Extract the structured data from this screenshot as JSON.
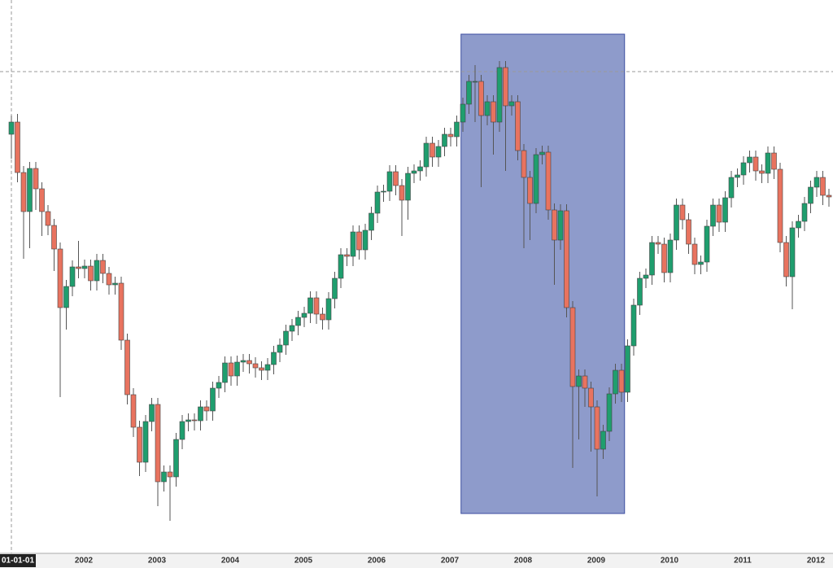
{
  "chart_data": {
    "type": "candlestick",
    "categories": [
      "01-01-01",
      null,
      null,
      null,
      null,
      null,
      null,
      null,
      null,
      null,
      null,
      null,
      "2002",
      null,
      null,
      null,
      null,
      null,
      null,
      null,
      null,
      null,
      null,
      null,
      "2003",
      null,
      null,
      null,
      null,
      null,
      null,
      null,
      null,
      null,
      null,
      null,
      "2004",
      null,
      null,
      null,
      null,
      null,
      null,
      null,
      null,
      null,
      null,
      null,
      "2005",
      null,
      null,
      null,
      null,
      null,
      null,
      null,
      null,
      null,
      null,
      null,
      "2006",
      null,
      null,
      null,
      null,
      null,
      null,
      null,
      null,
      null,
      null,
      null,
      "2007",
      null,
      null,
      null,
      null,
      null,
      null,
      null,
      null,
      null,
      null,
      null,
      "2008",
      null,
      null,
      null,
      null,
      null,
      null,
      null,
      null,
      null,
      null,
      null,
      "2009",
      null,
      null,
      null,
      null,
      null,
      null,
      null,
      null,
      null,
      null,
      null,
      "2010",
      null,
      null,
      null,
      null,
      null,
      null,
      null,
      null,
      null,
      null,
      null,
      "2011",
      null,
      null,
      null,
      null,
      null,
      null,
      null,
      null,
      null,
      null,
      null,
      "2012",
      null,
      null
    ],
    "open": [
      515,
      530,
      468,
      420,
      473,
      448,
      420,
      403,
      374,
      302,
      328,
      352,
      350,
      353,
      335,
      360,
      344,
      330,
      332,
      262,
      195,
      155,
      112,
      162,
      183,
      88,
      100,
      94,
      140,
      162,
      164,
      163,
      180,
      175,
      203,
      210,
      234,
      218,
      235,
      237,
      233,
      228,
      225,
      232,
      247,
      256,
      273,
      280,
      290,
      295,
      314,
      294,
      287,
      313,
      338,
      367,
      365,
      395,
      373,
      397,
      418,
      444,
      445,
      469,
      452,
      434,
      467,
      470,
      475,
      504,
      487,
      500,
      515,
      512,
      530,
      552,
      580,
      580,
      538,
      555,
      530,
      597,
      550,
      555,
      495,
      462,
      430,
      490,
      493,
      422,
      385,
      421,
      302,
      205,
      218,
      203,
      180,
      128,
      150,
      196,
      225,
      198,
      255,
      305,
      338,
      342,
      382,
      380,
      345,
      385,
      428,
      410,
      380,
      355,
      358,
      402,
      428,
      407,
      437,
      462,
      465,
      480,
      487,
      470,
      467,
      492,
      472,
      382,
      340,
      400,
      408,
      430,
      450,
      462,
      440
    ],
    "high": [
      538,
      540,
      476,
      481,
      481,
      456,
      428,
      411,
      382,
      336,
      360,
      384,
      361,
      361,
      368,
      368,
      352,
      340,
      340,
      270,
      203,
      163,
      170,
      191,
      191,
      108,
      108,
      148,
      170,
      172,
      172,
      188,
      188,
      211,
      218,
      242,
      242,
      243,
      245,
      245,
      241,
      236,
      240,
      255,
      264,
      281,
      288,
      298,
      303,
      322,
      322,
      302,
      321,
      346,
      375,
      375,
      403,
      403,
      405,
      426,
      452,
      453,
      477,
      477,
      460,
      475,
      478,
      483,
      512,
      512,
      508,
      523,
      523,
      538,
      560,
      588,
      600,
      588,
      563,
      563,
      605,
      605,
      563,
      563,
      503,
      470,
      498,
      501,
      501,
      430,
      429,
      429,
      310,
      226,
      226,
      211,
      188,
      158,
      204,
      233,
      233,
      263,
      313,
      346,
      350,
      390,
      390,
      388,
      393,
      436,
      436,
      418,
      388,
      366,
      410,
      436,
      436,
      445,
      470,
      473,
      488,
      495,
      495,
      478,
      500,
      500,
      480,
      390,
      408,
      416,
      438,
      458,
      470,
      470,
      448
    ],
    "low": [
      485,
      456,
      362,
      375,
      422,
      390,
      391,
      347,
      192,
      275,
      316,
      338,
      338,
      323,
      323,
      332,
      318,
      318,
      250,
      183,
      143,
      95,
      100,
      150,
      58,
      76,
      40,
      82,
      128,
      150,
      151,
      151,
      163,
      163,
      191,
      198,
      206,
      206,
      223,
      221,
      216,
      213,
      213,
      220,
      235,
      244,
      261,
      268,
      278,
      283,
      282,
      275,
      275,
      301,
      326,
      353,
      353,
      361,
      361,
      385,
      406,
      432,
      433,
      440,
      390,
      410,
      455,
      458,
      463,
      475,
      475,
      488,
      500,
      500,
      518,
      540,
      530,
      450,
      526,
      490,
      518,
      470,
      538,
      483,
      375,
      385,
      418,
      478,
      410,
      330,
      373,
      290,
      105,
      140,
      180,
      125,
      70,
      116,
      138,
      184,
      186,
      186,
      243,
      293,
      326,
      330,
      368,
      333,
      333,
      373,
      398,
      368,
      343,
      343,
      346,
      390,
      395,
      395,
      425,
      450,
      453,
      468,
      458,
      455,
      455,
      460,
      370,
      328,
      300,
      388,
      396,
      418,
      438,
      428,
      426
    ],
    "close": [
      530,
      468,
      420,
      473,
      448,
      420,
      403,
      374,
      302,
      328,
      352,
      350,
      353,
      335,
      360,
      344,
      330,
      332,
      262,
      195,
      155,
      112,
      162,
      183,
      88,
      100,
      94,
      140,
      162,
      164,
      163,
      180,
      175,
      203,
      210,
      234,
      218,
      235,
      237,
      233,
      228,
      225,
      232,
      247,
      256,
      273,
      280,
      290,
      295,
      314,
      294,
      287,
      313,
      338,
      367,
      365,
      395,
      373,
      397,
      418,
      444,
      445,
      469,
      452,
      434,
      467,
      470,
      475,
      504,
      487,
      500,
      515,
      512,
      530,
      552,
      580,
      580,
      538,
      555,
      530,
      597,
      550,
      555,
      495,
      462,
      430,
      490,
      493,
      422,
      385,
      421,
      302,
      205,
      218,
      203,
      180,
      128,
      150,
      196,
      225,
      198,
      255,
      305,
      338,
      342,
      382,
      380,
      345,
      385,
      428,
      410,
      380,
      355,
      358,
      402,
      428,
      407,
      437,
      462,
      465,
      480,
      487,
      470,
      467,
      492,
      472,
      382,
      340,
      400,
      408,
      430,
      450,
      462,
      440,
      438
    ],
    "up_color": "#1f9e6e",
    "down_color": "#e8735f",
    "ylim": [
      0,
      680
    ],
    "crosshair_value": 592,
    "highlight": {
      "from": 73.7,
      "to": 100.5,
      "top": 638,
      "bottom": 49,
      "color": "#8e9bcb"
    }
  }
}
